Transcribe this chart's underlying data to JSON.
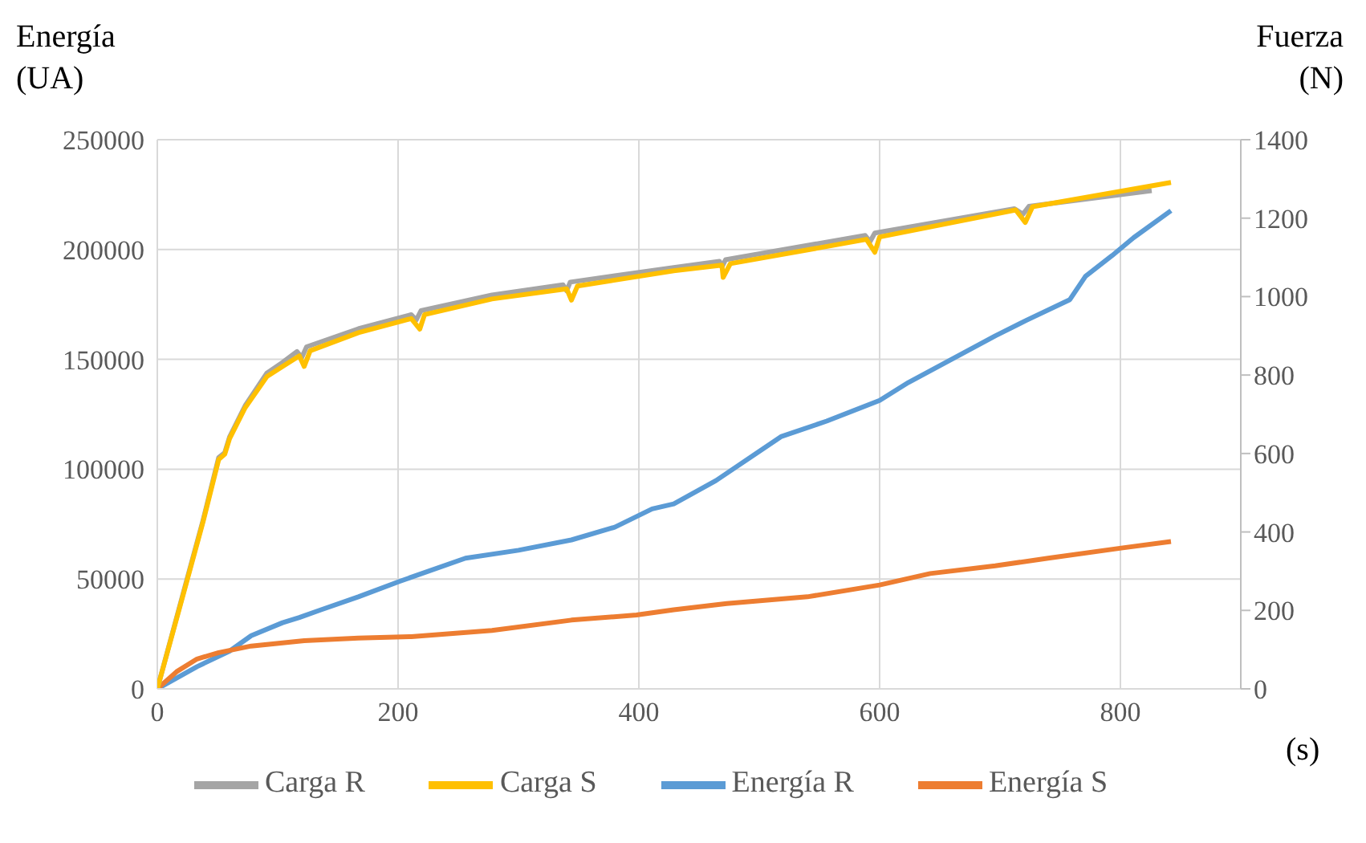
{
  "chart_data": {
    "type": "line",
    "ylabel": "Energía (UA)",
    "y2label": "Fuerza (N)",
    "xlabel": "(s)",
    "xlim": [
      0,
      900
    ],
    "xticks": [
      0,
      200,
      400,
      600,
      800
    ],
    "ylim": [
      0,
      250000
    ],
    "yticks": [
      0,
      50000,
      100000,
      150000,
      200000,
      250000
    ],
    "y2lim": [
      0,
      1400
    ],
    "y2ticks": [
      0,
      200,
      400,
      600,
      800,
      1000,
      1200,
      1400
    ],
    "grid": true,
    "legend": "bottom",
    "marker": "none",
    "line_style": "solid",
    "series": [
      {
        "name": "Energía R",
        "color": "#5b9bd5",
        "x": [
          0,
          33,
          60,
          78,
          104,
          118,
          136,
          167,
          201,
          256,
          300,
          344,
          380,
          411,
          429,
          464,
          496,
          518,
          556,
          600,
          624,
          660,
          696,
          722,
          758,
          771,
          793,
          811,
          842
        ],
        "values": [
          0,
          10100,
          17200,
          24200,
          30100,
          32500,
          36000,
          41900,
          48900,
          59500,
          63100,
          67800,
          73600,
          81900,
          84200,
          94800,
          106600,
          114800,
          121900,
          131300,
          139500,
          150100,
          160700,
          167800,
          177200,
          187800,
          197200,
          205400,
          217700
        ]
      },
      {
        "name": "Energía S",
        "color": "#ed7d31",
        "x": [
          0,
          16,
          33,
          51,
          78,
          122,
          167,
          211,
          278,
          344,
          398,
          429,
          473,
          540,
          600,
          642,
          696,
          740,
          802,
          842
        ],
        "values": [
          0,
          7800,
          13600,
          16500,
          19500,
          21900,
          23100,
          23800,
          26600,
          31300,
          33600,
          36000,
          38800,
          41900,
          47300,
          52500,
          56000,
          59500,
          64200,
          67100
        ]
      },
      {
        "name": "Carga R",
        "color": "#a5a5a5",
        "axis": "y2",
        "x": [
          0,
          24,
          38,
          51,
          56,
          60,
          73,
          91,
          104,
          116,
          120,
          124,
          167,
          211,
          215,
          219,
          278,
          337,
          340,
          343,
          429,
          467,
          469,
          472,
          588,
          592,
          596,
          712,
          719,
          724,
          826
        ],
        "values": [
          0,
          272,
          430,
          590,
          602,
          642,
          722,
          805,
          832,
          860,
          845,
          872,
          918,
          954,
          940,
          964,
          1004,
          1030,
          1015,
          1037,
          1074,
          1090,
          1075,
          1094,
          1156,
          1140,
          1162,
          1224,
          1210,
          1230,
          1270
        ]
      },
      {
        "name": "Carga S",
        "color": "#ffc000",
        "axis": "y2",
        "x": [
          0,
          24,
          38,
          51,
          56,
          60,
          73,
          91,
          104,
          118,
          122,
          127,
          167,
          211,
          218,
          222,
          278,
          340,
          344,
          349,
          429,
          469,
          470,
          476,
          589,
          596,
          600,
          713,
          721,
          727,
          842
        ],
        "values": [
          0,
          268,
          426,
          585,
          598,
          638,
          717,
          796,
          822,
          849,
          822,
          862,
          908,
          944,
          917,
          954,
          994,
          1020,
          991,
          1027,
          1066,
          1080,
          1049,
          1084,
          1146,
          1113,
          1152,
          1221,
          1189,
          1229,
          1291
        ]
      }
    ]
  }
}
